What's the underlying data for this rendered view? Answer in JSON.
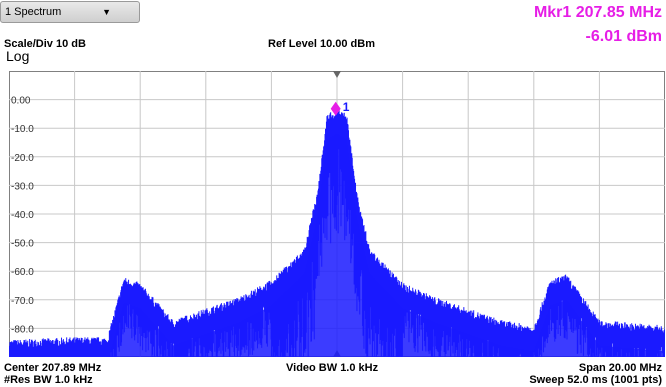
{
  "toolbar": {
    "window_label": "1 Spectrum"
  },
  "header": {
    "scale_div": "Scale/Div 10 dB",
    "log_label": "Log",
    "ref_level": "Ref Level 10.00 dBm"
  },
  "marker": {
    "freq_readout": "Mkr1  207.85 MHz",
    "amp_readout": "-6.01 dBm",
    "label": "1",
    "color": "#e61ee6"
  },
  "footer": {
    "center": "Center 207.89 MHz",
    "res_bw": "#Res BW 1.0 kHz",
    "video_bw": "Video BW 1.0 kHz",
    "span": "Span 20.00 MHz",
    "sweep": "Sweep 52.0 ms (1001 pts)"
  },
  "chart_data": {
    "type": "line",
    "trace_color": "#1a1aff",
    "grid": true,
    "x_unit": "MHz",
    "xlim": [
      197.89,
      217.89
    ],
    "ylim": [
      -90,
      10
    ],
    "y_tick_labels": [
      "0.00",
      "-10.0",
      "-20.0",
      "-30.0",
      "-40.0",
      "-50.0",
      "-60.0",
      "-70.0",
      "-80.0"
    ],
    "series": [
      {
        "x": [
          197.89,
          199.89,
          200.89,
          201.39,
          201.89,
          202.89,
          203.89,
          204.89,
          205.89,
          206.89,
          207.29,
          207.59,
          207.89,
          208.19,
          208.49,
          208.89,
          209.89,
          210.89,
          211.89,
          212.89,
          213.89,
          214.39,
          214.89,
          215.89,
          217.89
        ],
        "y": [
          -87,
          -86,
          -86,
          -65,
          -67,
          -80,
          -76,
          -72,
          -66,
          -55,
          -35,
          -8,
          -6,
          -8,
          -35,
          -55,
          -67,
          -72,
          -76,
          -80,
          -82,
          -66,
          -64,
          -80,
          -82
        ]
      }
    ],
    "marker": {
      "x": 207.85,
      "y": -6.01
    }
  }
}
